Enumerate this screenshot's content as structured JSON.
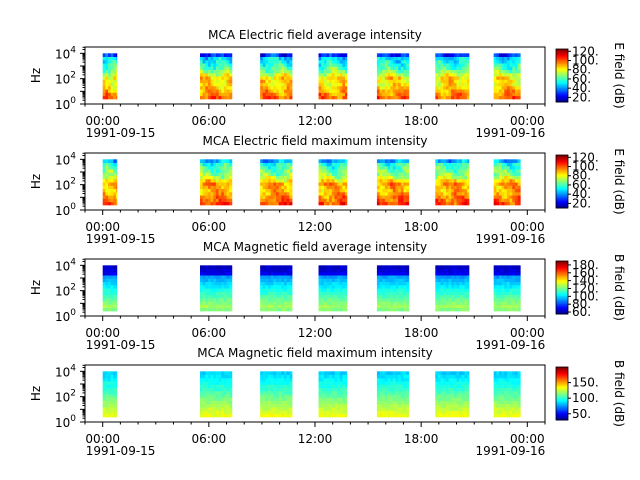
{
  "figure": {
    "x_tick_labels": [
      "00:00",
      "06:00",
      "12:00",
      "18:00",
      "00:00"
    ],
    "x_tick_hours": [
      0,
      6,
      12,
      18,
      24
    ],
    "x_minor_step_hours": 1,
    "x_range_hours": [
      -1,
      25
    ],
    "date_start": "1991-09-15",
    "date_end": "1991-09-16",
    "y_axis_label": "Hz",
    "y_tick_base": "10",
    "y_tick_exponents": [
      "0",
      "2",
      "4"
    ]
  },
  "chart_data": [
    {
      "type": "heatmap",
      "title": "MCA  Electric field average intensity",
      "ylabel": "Hz",
      "ylim_log10": [
        0,
        4.5
      ],
      "colorbar": {
        "label": "E field (dB)",
        "ticks": [
          "20.",
          "40.",
          "60.",
          "80.",
          "100.",
          "120."
        ],
        "range": [
          10,
          125
        ]
      },
      "profile": "electric_average",
      "segments_hours": [
        [
          0,
          0.8
        ],
        [
          5.5,
          7.3
        ],
        [
          8.9,
          10.7
        ],
        [
          12.2,
          13.8
        ],
        [
          15.5,
          17.3
        ],
        [
          18.8,
          20.7
        ],
        [
          22.1,
          23.6
        ]
      ]
    },
    {
      "type": "heatmap",
      "title": "MCA  Electric field maximum intensity",
      "ylabel": "Hz",
      "ylim_log10": [
        0,
        4.5
      ],
      "colorbar": {
        "label": "E field (dB)",
        "ticks": [
          "20.",
          "40.",
          "60.",
          "80.",
          "100.",
          "120."
        ],
        "range": [
          10,
          125
        ]
      },
      "profile": "electric_maximum",
      "segments_hours": [
        [
          0,
          0.8
        ],
        [
          5.5,
          7.3
        ],
        [
          8.9,
          10.7
        ],
        [
          12.2,
          13.8
        ],
        [
          15.5,
          17.3
        ],
        [
          18.8,
          20.7
        ],
        [
          22.1,
          23.6
        ]
      ]
    },
    {
      "type": "heatmap",
      "title": "MCA  Magnetic field average intensity",
      "ylabel": "Hz",
      "ylim_log10": [
        0,
        4.5
      ],
      "colorbar": {
        "label": "B field (dB)",
        "ticks": [
          "60.",
          "80.",
          "100.",
          "120.",
          "140.",
          "160.",
          "180."
        ],
        "range": [
          55,
          190
        ]
      },
      "profile": "magnetic_average",
      "segments_hours": [
        [
          0,
          0.8
        ],
        [
          5.5,
          7.3
        ],
        [
          8.9,
          10.7
        ],
        [
          12.2,
          13.8
        ],
        [
          15.5,
          17.3
        ],
        [
          18.8,
          20.7
        ],
        [
          22.1,
          23.6
        ]
      ]
    },
    {
      "type": "heatmap",
      "title": "MCA  Magnetic field maximum intensity",
      "ylabel": "Hz",
      "ylim_log10": [
        0,
        4.5
      ],
      "colorbar": {
        "label": "B field (dB)",
        "ticks": [
          "50.",
          "100.",
          "150."
        ],
        "range": [
          30,
          200
        ]
      },
      "profile": "magnetic_maximum",
      "segments_hours": [
        [
          0,
          0.8
        ],
        [
          5.5,
          7.3
        ],
        [
          8.9,
          10.7
        ],
        [
          12.2,
          13.8
        ],
        [
          15.5,
          17.3
        ],
        [
          18.8,
          20.7
        ],
        [
          22.1,
          23.6
        ]
      ]
    }
  ]
}
